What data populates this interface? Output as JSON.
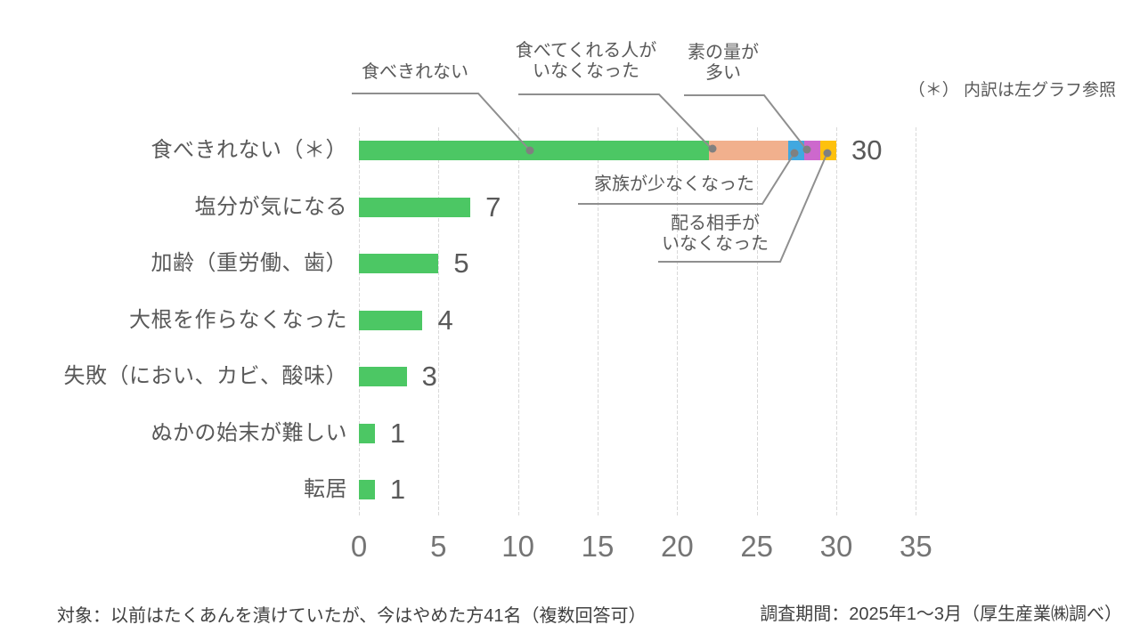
{
  "note": "（＊） 内訳は左グラフ参照",
  "footer": {
    "left": "対象：以前はたくあんを漬けていたが、今はやめた方41名（複数回答可）",
    "right": "調査期間：2025年1～3月（厚生産業㈱調べ）"
  },
  "chart_data": {
    "type": "bar",
    "orientation": "horizontal",
    "title": "",
    "categories": [
      "食べきれない（＊）",
      "塩分が気になる",
      "加齢（重労働、歯）",
      "大根を作らなくなった",
      "失敗（におい、カビ、酸味）",
      "ぬかの始末が難しい",
      "転居"
    ],
    "values": [
      30,
      7,
      5,
      4,
      3,
      1,
      1
    ],
    "bar_color": "#4cc764",
    "xlim": [
      0,
      35
    ],
    "xticks": [
      0,
      5,
      10,
      15,
      20,
      25,
      30,
      35
    ],
    "grid": true,
    "legend": "none",
    "first_bar_segments": [
      {
        "label": "食べきれない",
        "value": 22,
        "color": "#4cc764"
      },
      {
        "label": "食べてくれる人がいなくなった",
        "value": 5,
        "color": "#f1b08d"
      },
      {
        "label": "家族が少なくなった",
        "value": 1,
        "color": "#41a8e0"
      },
      {
        "label": "素の量が多い",
        "value": 1,
        "color": "#cd68cd"
      },
      {
        "label": "配る相手がいなくなった",
        "value": 1,
        "color": "#fec10d"
      }
    ],
    "annotations": [
      {
        "text": "食べきれない",
        "segment_index": 0
      },
      {
        "text": "食べてくれる人が\nいなくなった",
        "segment_index": 1
      },
      {
        "text": "素の量が\n多い",
        "segment_index": 3
      },
      {
        "text": "家族が少なくなった",
        "segment_index": 2
      },
      {
        "text": "配る相手が\nいなくなった",
        "segment_index": 4
      }
    ]
  }
}
